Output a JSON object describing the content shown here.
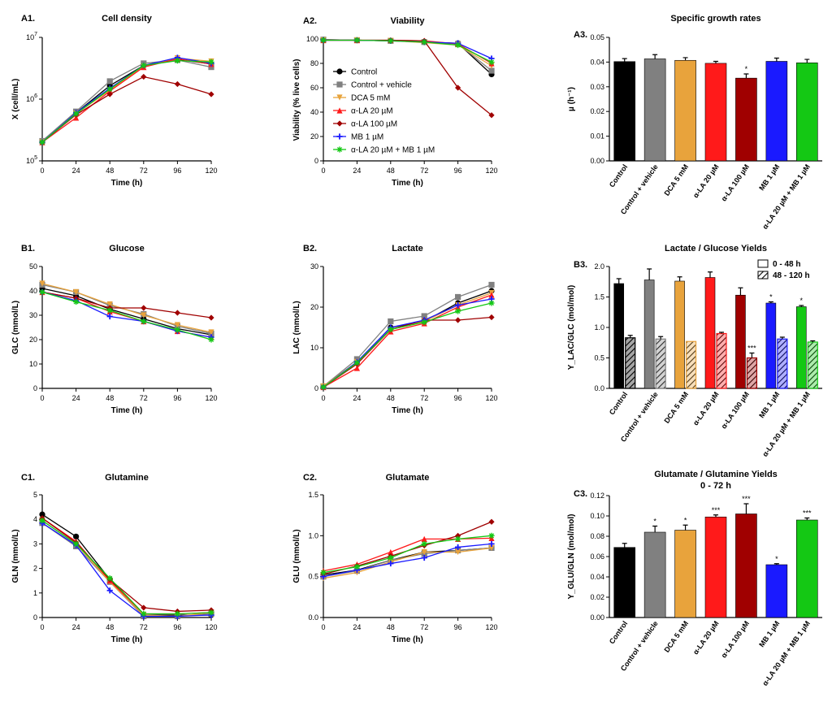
{
  "colors": {
    "Control": "#000000",
    "Control + vehicle": "#808080",
    "DCA 5 mM": "#E8A33C",
    "α-LA 20 µM": "#FF1A1A",
    "α-LA 100 µM": "#A00000",
    "MB 1 µM": "#1A1AFF",
    "α-LA 20 µM + MB 1 µM": "#14C814"
  },
  "legend": {
    "placement": "panel A2, center-left",
    "entries": [
      {
        "label": "Control",
        "marker": "circle"
      },
      {
        "label": "Control + vehicle",
        "marker": "square"
      },
      {
        "label": "DCA 5 mM",
        "marker": "triangle-down"
      },
      {
        "label": "α-LA 20 µM",
        "marker": "triangle-up"
      },
      {
        "label": "α-LA 100 µM",
        "marker": "diamond"
      },
      {
        "label": "MB 1 µM",
        "marker": "plus"
      },
      {
        "label": "α-LA 20 µM + MB 1 µM",
        "marker": "star"
      }
    ]
  },
  "chart_data": [
    {
      "panel": "A1.",
      "type": "line",
      "title": "Cell density",
      "xlabel": "Time (h)",
      "ylabel": "X (cell/mL)",
      "yscale": "log",
      "xlim": [
        0,
        120
      ],
      "ylim": [
        100000,
        10000000
      ],
      "xticks": [
        0,
        24,
        48,
        72,
        96,
        120
      ],
      "yticks": [
        {
          "v": 100000,
          "b": "10",
          "e": "5"
        },
        {
          "v": 1000000,
          "b": "10",
          "e": "6"
        },
        {
          "v": 10000000,
          "b": "10",
          "e": "7"
        }
      ],
      "x": [
        0,
        24,
        48,
        72,
        96,
        120
      ],
      "series": [
        {
          "name": "Control",
          "values": [
            210000,
            600000,
            1650000,
            3500000,
            4400000,
            3700000
          ]
        },
        {
          "name": "Control + vehicle",
          "values": [
            210000,
            630000,
            1950000,
            3800000,
            4300000,
            3300000
          ]
        },
        {
          "name": "DCA 5 mM",
          "values": [
            200000,
            580000,
            1400000,
            3400000,
            4600000,
            4100000
          ]
        },
        {
          "name": "α-LA 20 µM",
          "values": [
            200000,
            500000,
            1350000,
            3300000,
            4500000,
            3700000
          ]
        },
        {
          "name": "α-LA 100 µM",
          "values": [
            200000,
            560000,
            1200000,
            2300000,
            1750000,
            1200000
          ]
        },
        {
          "name": "MB 1 µM",
          "values": [
            200000,
            600000,
            1500000,
            3500000,
            4700000,
            3800000
          ]
        },
        {
          "name": "α-LA 20 µM + MB 1 µM",
          "values": [
            200000,
            580000,
            1450000,
            3500000,
            4200000,
            4000000
          ]
        }
      ]
    },
    {
      "panel": "A2.",
      "type": "line",
      "title": "Viability",
      "xlabel": "Time (h)",
      "ylabel": "Viability (% live cells)",
      "xlim": [
        0,
        120
      ],
      "ylim": [
        0,
        100
      ],
      "xticks": [
        0,
        24,
        48,
        72,
        96,
        120
      ],
      "yticks": [
        0,
        20,
        40,
        60,
        80,
        100
      ],
      "x": [
        0,
        24,
        48,
        72,
        96,
        120
      ],
      "series": [
        {
          "name": "Control",
          "values": [
            99.5,
            99,
            98.5,
            97.5,
            96.5,
            71
          ]
        },
        {
          "name": "Control + vehicle",
          "values": [
            99.5,
            99,
            98.5,
            97.5,
            96,
            74
          ]
        },
        {
          "name": "DCA 5 mM",
          "values": [
            99,
            99,
            98.5,
            97,
            95,
            78
          ]
        },
        {
          "name": "α-LA 20 µM",
          "values": [
            99,
            99,
            99,
            98.5,
            96,
            80
          ]
        },
        {
          "name": "α-LA 100 µM",
          "values": [
            99,
            99,
            99,
            98.5,
            60,
            37.5
          ]
        },
        {
          "name": "MB 1 µM",
          "values": [
            99,
            99,
            98.5,
            97.5,
            96.5,
            84
          ]
        },
        {
          "name": "α-LA 20 µM + MB 1 µM",
          "values": [
            99,
            99,
            98.5,
            97.5,
            95,
            81
          ]
        }
      ]
    },
    {
      "panel": "A3.",
      "type": "bar",
      "title": "Specific growth rates",
      "ylabel": "µ (h⁻¹)",
      "ylim": [
        0,
        0.05
      ],
      "yticks": [
        "0.00",
        "0.01",
        "0.02",
        "0.03",
        "0.04",
        "0.05"
      ],
      "categories": [
        "Control",
        "Control + vehicle",
        "DCA 5 mM",
        "α-LA 20 µM",
        "α-LA 100 µM",
        "MB 1 µM",
        "α-LA 20 µM + MB 1 µM"
      ],
      "values": [
        0.0402,
        0.0413,
        0.0407,
        0.0395,
        0.0335,
        0.0403,
        0.0397
      ],
      "errors": [
        0.0012,
        0.0017,
        0.0011,
        0.0008,
        0.0017,
        0.0013,
        0.0014
      ],
      "annotations": [
        "",
        "",
        "",
        "",
        "*",
        "",
        ""
      ]
    },
    {
      "panel": "B1.",
      "type": "line",
      "title": "Glucose",
      "xlabel": "Time (h)",
      "ylabel": "GLC (mmol/L)",
      "xlim": [
        0,
        120
      ],
      "ylim": [
        0,
        50
      ],
      "xticks": [
        0,
        24,
        48,
        72,
        96,
        120
      ],
      "yticks": [
        0,
        10,
        20,
        30,
        40,
        50
      ],
      "x": [
        0,
        24,
        48,
        72,
        96,
        120
      ],
      "series": [
        {
          "name": "Control",
          "values": [
            41,
            38,
            32.5,
            28.5,
            24.5,
            22
          ]
        },
        {
          "name": "Control + vehicle",
          "values": [
            42.5,
            39.5,
            34,
            30.5,
            25.5,
            22.5
          ]
        },
        {
          "name": "DCA 5 mM",
          "values": [
            43,
            39.5,
            34.5,
            30,
            26,
            23
          ]
        },
        {
          "name": "α-LA 20 µM",
          "values": [
            39.5,
            37,
            31.5,
            27.5,
            23.5,
            21
          ]
        },
        {
          "name": "α-LA 100 µM",
          "values": [
            39.5,
            37,
            33,
            33,
            31,
            29
          ]
        },
        {
          "name": "MB 1 µM",
          "values": [
            39.5,
            36,
            29.5,
            27.5,
            23.5,
            21
          ]
        },
        {
          "name": "α-LA 20 µM + MB 1 µM",
          "values": [
            39.5,
            35.5,
            32,
            27.5,
            24,
            20
          ]
        }
      ]
    },
    {
      "panel": "B2.",
      "type": "line",
      "title": "Lactate",
      "xlabel": "Time (h)",
      "ylabel": "LAC (mmol/L)",
      "xlim": [
        0,
        120
      ],
      "ylim": [
        0,
        30
      ],
      "xticks": [
        0,
        24,
        48,
        72,
        96,
        120
      ],
      "yticks": [
        0,
        10,
        20,
        30
      ],
      "x": [
        0,
        24,
        48,
        72,
        96,
        120
      ],
      "series": [
        {
          "name": "Control",
          "values": [
            0.5,
            6.5,
            15,
            16.5,
            21,
            24
          ]
        },
        {
          "name": "Control + vehicle",
          "values": [
            0.5,
            7.2,
            16.5,
            17.8,
            22.5,
            25.5
          ]
        },
        {
          "name": "DCA 5 mM",
          "values": [
            0.5,
            6.5,
            14.5,
            16.5,
            20.5,
            23.5
          ]
        },
        {
          "name": "α-LA 20 µM",
          "values": [
            0.3,
            5,
            14,
            16,
            20,
            23
          ]
        },
        {
          "name": "α-LA 100 µM",
          "values": [
            0.3,
            6,
            14.5,
            16.8,
            16.8,
            17.5
          ]
        },
        {
          "name": "MB 1 µM",
          "values": [
            0.3,
            6.5,
            15,
            16.8,
            20.5,
            22
          ]
        },
        {
          "name": "α-LA 20 µM + MB 1 µM",
          "values": [
            0.3,
            6.3,
            14.5,
            16.3,
            19,
            21
          ]
        }
      ]
    },
    {
      "panel": "B3.",
      "type": "bar",
      "title": "Lactate / Glucose Yields",
      "ylabel": "Y_LAC/GLC (mol/mol)",
      "ylim": [
        0,
        2.0
      ],
      "yticks": [
        "0.0",
        "0.5",
        "1.0",
        "1.5",
        "2.0"
      ],
      "categories": [
        "Control",
        "Control + vehicle",
        "DCA 5 mM",
        "α-LA 20 µM",
        "α-LA 100 µM",
        "MB 1 µM",
        "α-LA 20 µM + MB 1 µM"
      ],
      "series": [
        {
          "name": "0 - 48 h",
          "values": [
            1.72,
            1.78,
            1.76,
            1.82,
            1.53,
            1.4,
            1.34
          ],
          "errors": [
            0.08,
            0.18,
            0.07,
            0.09,
            0.12,
            0.02,
            0.02
          ],
          "annotations": [
            "",
            "",
            "",
            "",
            "",
            "*",
            "*"
          ]
        },
        {
          "name": "48 - 120 h",
          "values": [
            0.83,
            0.81,
            0.77,
            0.9,
            0.5,
            0.81,
            0.76
          ],
          "errors": [
            0.04,
            0.04,
            0.0,
            0.02,
            0.08,
            0.03,
            0.02
          ],
          "annotations": [
            "",
            "",
            "",
            "",
            "***",
            "",
            ""
          ]
        }
      ]
    },
    {
      "panel": "C1.",
      "type": "line",
      "title": "Glutamine",
      "xlabel": "Time (h)",
      "ylabel": "GLN (mmol/L)",
      "xlim": [
        0,
        120
      ],
      "ylim": [
        0,
        5
      ],
      "xticks": [
        0,
        24,
        48,
        72,
        96,
        120
      ],
      "yticks": [
        0,
        1,
        2,
        3,
        4,
        5
      ],
      "x": [
        0,
        24,
        48,
        72,
        96,
        120
      ],
      "series": [
        {
          "name": "Control",
          "values": [
            4.2,
            3.3,
            1.55,
            0.1,
            0.1,
            0.1
          ]
        },
        {
          "name": "Control + vehicle",
          "values": [
            3.85,
            2.9,
            1.45,
            0.05,
            0.05,
            0.15
          ]
        },
        {
          "name": "DCA 5 mM",
          "values": [
            3.95,
            3.0,
            1.45,
            0.1,
            0.05,
            0.2
          ]
        },
        {
          "name": "α-LA 20 µM",
          "values": [
            4.05,
            3.1,
            1.5,
            0.15,
            0.15,
            0.2
          ]
        },
        {
          "name": "α-LA 100 µM",
          "values": [
            4.05,
            3.05,
            1.55,
            0.4,
            0.25,
            0.3
          ]
        },
        {
          "name": "MB 1 µM",
          "values": [
            3.85,
            2.95,
            1.1,
            0.05,
            0.05,
            0.1
          ]
        },
        {
          "name": "α-LA 20 µM + MB 1 µM",
          "values": [
            3.95,
            3.0,
            1.6,
            0.15,
            0.15,
            0.2
          ]
        }
      ]
    },
    {
      "panel": "C2.",
      "type": "line",
      "title": "Glutamate",
      "xlabel": "Time (h)",
      "ylabel": "GLU (mmol/L)",
      "xlim": [
        0,
        120
      ],
      "ylim": [
        0,
        1.5
      ],
      "xticks": [
        0,
        24,
        48,
        72,
        96,
        120
      ],
      "yticks": [
        "0.0",
        "0.5",
        "1.0",
        "1.5"
      ],
      "x": [
        0,
        24,
        48,
        72,
        96,
        120
      ],
      "series": [
        {
          "name": "Control",
          "values": [
            0.52,
            0.58,
            0.7,
            0.8,
            0.82,
            0.85
          ]
        },
        {
          "name": "Control + vehicle",
          "values": [
            0.5,
            0.57,
            0.7,
            0.78,
            0.82,
            0.85
          ]
        },
        {
          "name": "DCA 5 mM",
          "values": [
            0.48,
            0.55,
            0.68,
            0.8,
            0.8,
            0.85
          ]
        },
        {
          "name": "α-LA 20 µM",
          "values": [
            0.57,
            0.65,
            0.8,
            0.96,
            0.96,
            0.97
          ]
        },
        {
          "name": "α-LA 100 µM",
          "values": [
            0.53,
            0.63,
            0.75,
            0.88,
            1.0,
            1.17
          ]
        },
        {
          "name": "MB 1 µM",
          "values": [
            0.5,
            0.58,
            0.66,
            0.73,
            0.86,
            0.9
          ]
        },
        {
          "name": "α-LA 20 µM + MB 1 µM",
          "values": [
            0.55,
            0.62,
            0.73,
            0.9,
            0.96,
            1.0
          ]
        }
      ]
    },
    {
      "panel": "C3.",
      "type": "bar",
      "title": "Glutamate / Glutamine Yields",
      "subtitle": "0 - 72 h",
      "ylabel": "Y_GLU/GLN (mol/mol)",
      "ylim": [
        0,
        0.12
      ],
      "yticks": [
        "0.00",
        "0.02",
        "0.04",
        "0.06",
        "0.08",
        "0.10",
        "0.12"
      ],
      "categories": [
        "Control",
        "Control + vehicle",
        "DCA 5 mM",
        "α-LA 20 µM",
        "α-LA 100 µM",
        "MB 1 µM",
        "α-LA 20 µM + MB 1 µM"
      ],
      "values": [
        0.069,
        0.084,
        0.086,
        0.099,
        0.102,
        0.052,
        0.096
      ],
      "errors": [
        0.004,
        0.006,
        0.005,
        0.002,
        0.01,
        0.001,
        0.002
      ],
      "annotations": [
        "",
        "*",
        "*",
        "***",
        "***",
        "*",
        "***"
      ]
    }
  ]
}
